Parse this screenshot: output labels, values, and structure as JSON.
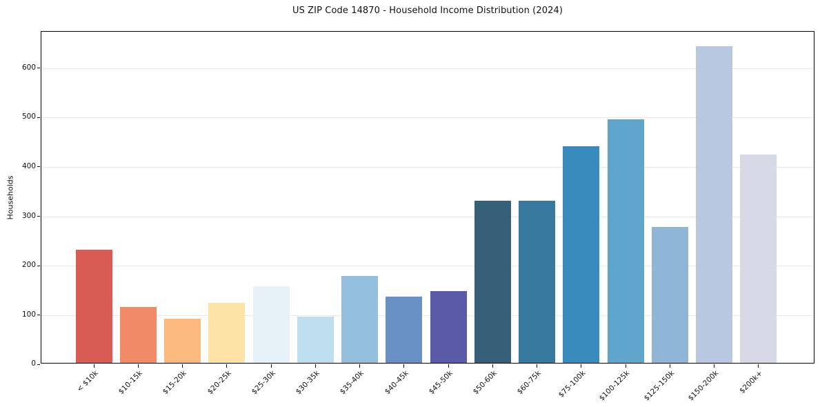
{
  "header": {
    "title": "US ZIP Code 14870 - Household Income Distribution (2024)"
  },
  "axes": {
    "y_axis_label": "Households"
  },
  "chart_data": {
    "type": "bar",
    "title": "US ZIP Code 14870 - Household Income Distribution (2024)",
    "xlabel": "",
    "ylabel": "Households",
    "categories": [
      "< $10k",
      "$10-15k",
      "$15-20k",
      "$20-25k",
      "$25-30k",
      "$30-35k",
      "$35-40k",
      "$40-45k",
      "$45-50k",
      "$50-60k",
      "$60-75k",
      "$75-100k",
      "$100-125k",
      "$125-150k",
      "$150-200k",
      "$200k+"
    ],
    "values": [
      230,
      113,
      90,
      122,
      155,
      94,
      176,
      134,
      146,
      329,
      329,
      439,
      494,
      275,
      642,
      422
    ],
    "bar_colors": [
      "#d85c54",
      "#f18a67",
      "#fcba7e",
      "#fde3a5",
      "#e6f2f8",
      "#bedfef",
      "#94bfdd",
      "#6a91c6",
      "#5a5aa9",
      "#366077",
      "#37799e",
      "#398bbe",
      "#5fa5cc",
      "#90b6d7",
      "#b8c8e1",
      "#d8d9e6"
    ],
    "yticks": [
      0,
      100,
      200,
      300,
      400,
      500,
      600
    ],
    "ylim": [
      0,
      674
    ],
    "grid": "horizontal-on",
    "grid_color": "#e8e8e8",
    "spine_color": "#000000",
    "background_color": "#ffffff",
    "x_tick_label_rotation_deg": 45,
    "legend": "none"
  }
}
